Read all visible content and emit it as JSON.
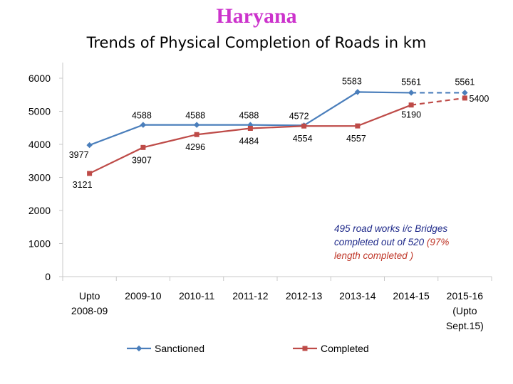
{
  "header": {
    "state": "Haryana",
    "title": "Trends of Physical Completion of Roads in km"
  },
  "note": {
    "line1": "495 road works i/c Bridges",
    "line2_a": "completed out of 520 ",
    "line2_b": "(97%",
    "line3": "length completed )"
  },
  "chart_data": {
    "type": "line",
    "categories": [
      [
        "Upto",
        "2008-09"
      ],
      [
        "2009-10"
      ],
      [
        "2010-11"
      ],
      [
        "2011-12"
      ],
      [
        "2012-13"
      ],
      [
        "2013-14"
      ],
      [
        "2014-15"
      ],
      [
        "2015-16",
        "(Upto",
        "Sept.15)"
      ]
    ],
    "series": [
      {
        "name": "Sanctioned",
        "color": "#4a7ebb",
        "values": [
          3977,
          4588,
          4588,
          4588,
          4572,
          5583,
          5561,
          5561
        ],
        "dashed_last_segment": true
      },
      {
        "name": "Completed",
        "color": "#be4b48",
        "values": [
          3121,
          3907,
          4296,
          4484,
          4554,
          4557,
          5190,
          5400
        ],
        "dashed_last_segment": true
      }
    ],
    "ylim": [
      0,
      6000
    ],
    "yticks": [
      0,
      1000,
      2000,
      3000,
      4000,
      5000,
      6000
    ],
    "grid": false,
    "legend_position": "bottom"
  }
}
